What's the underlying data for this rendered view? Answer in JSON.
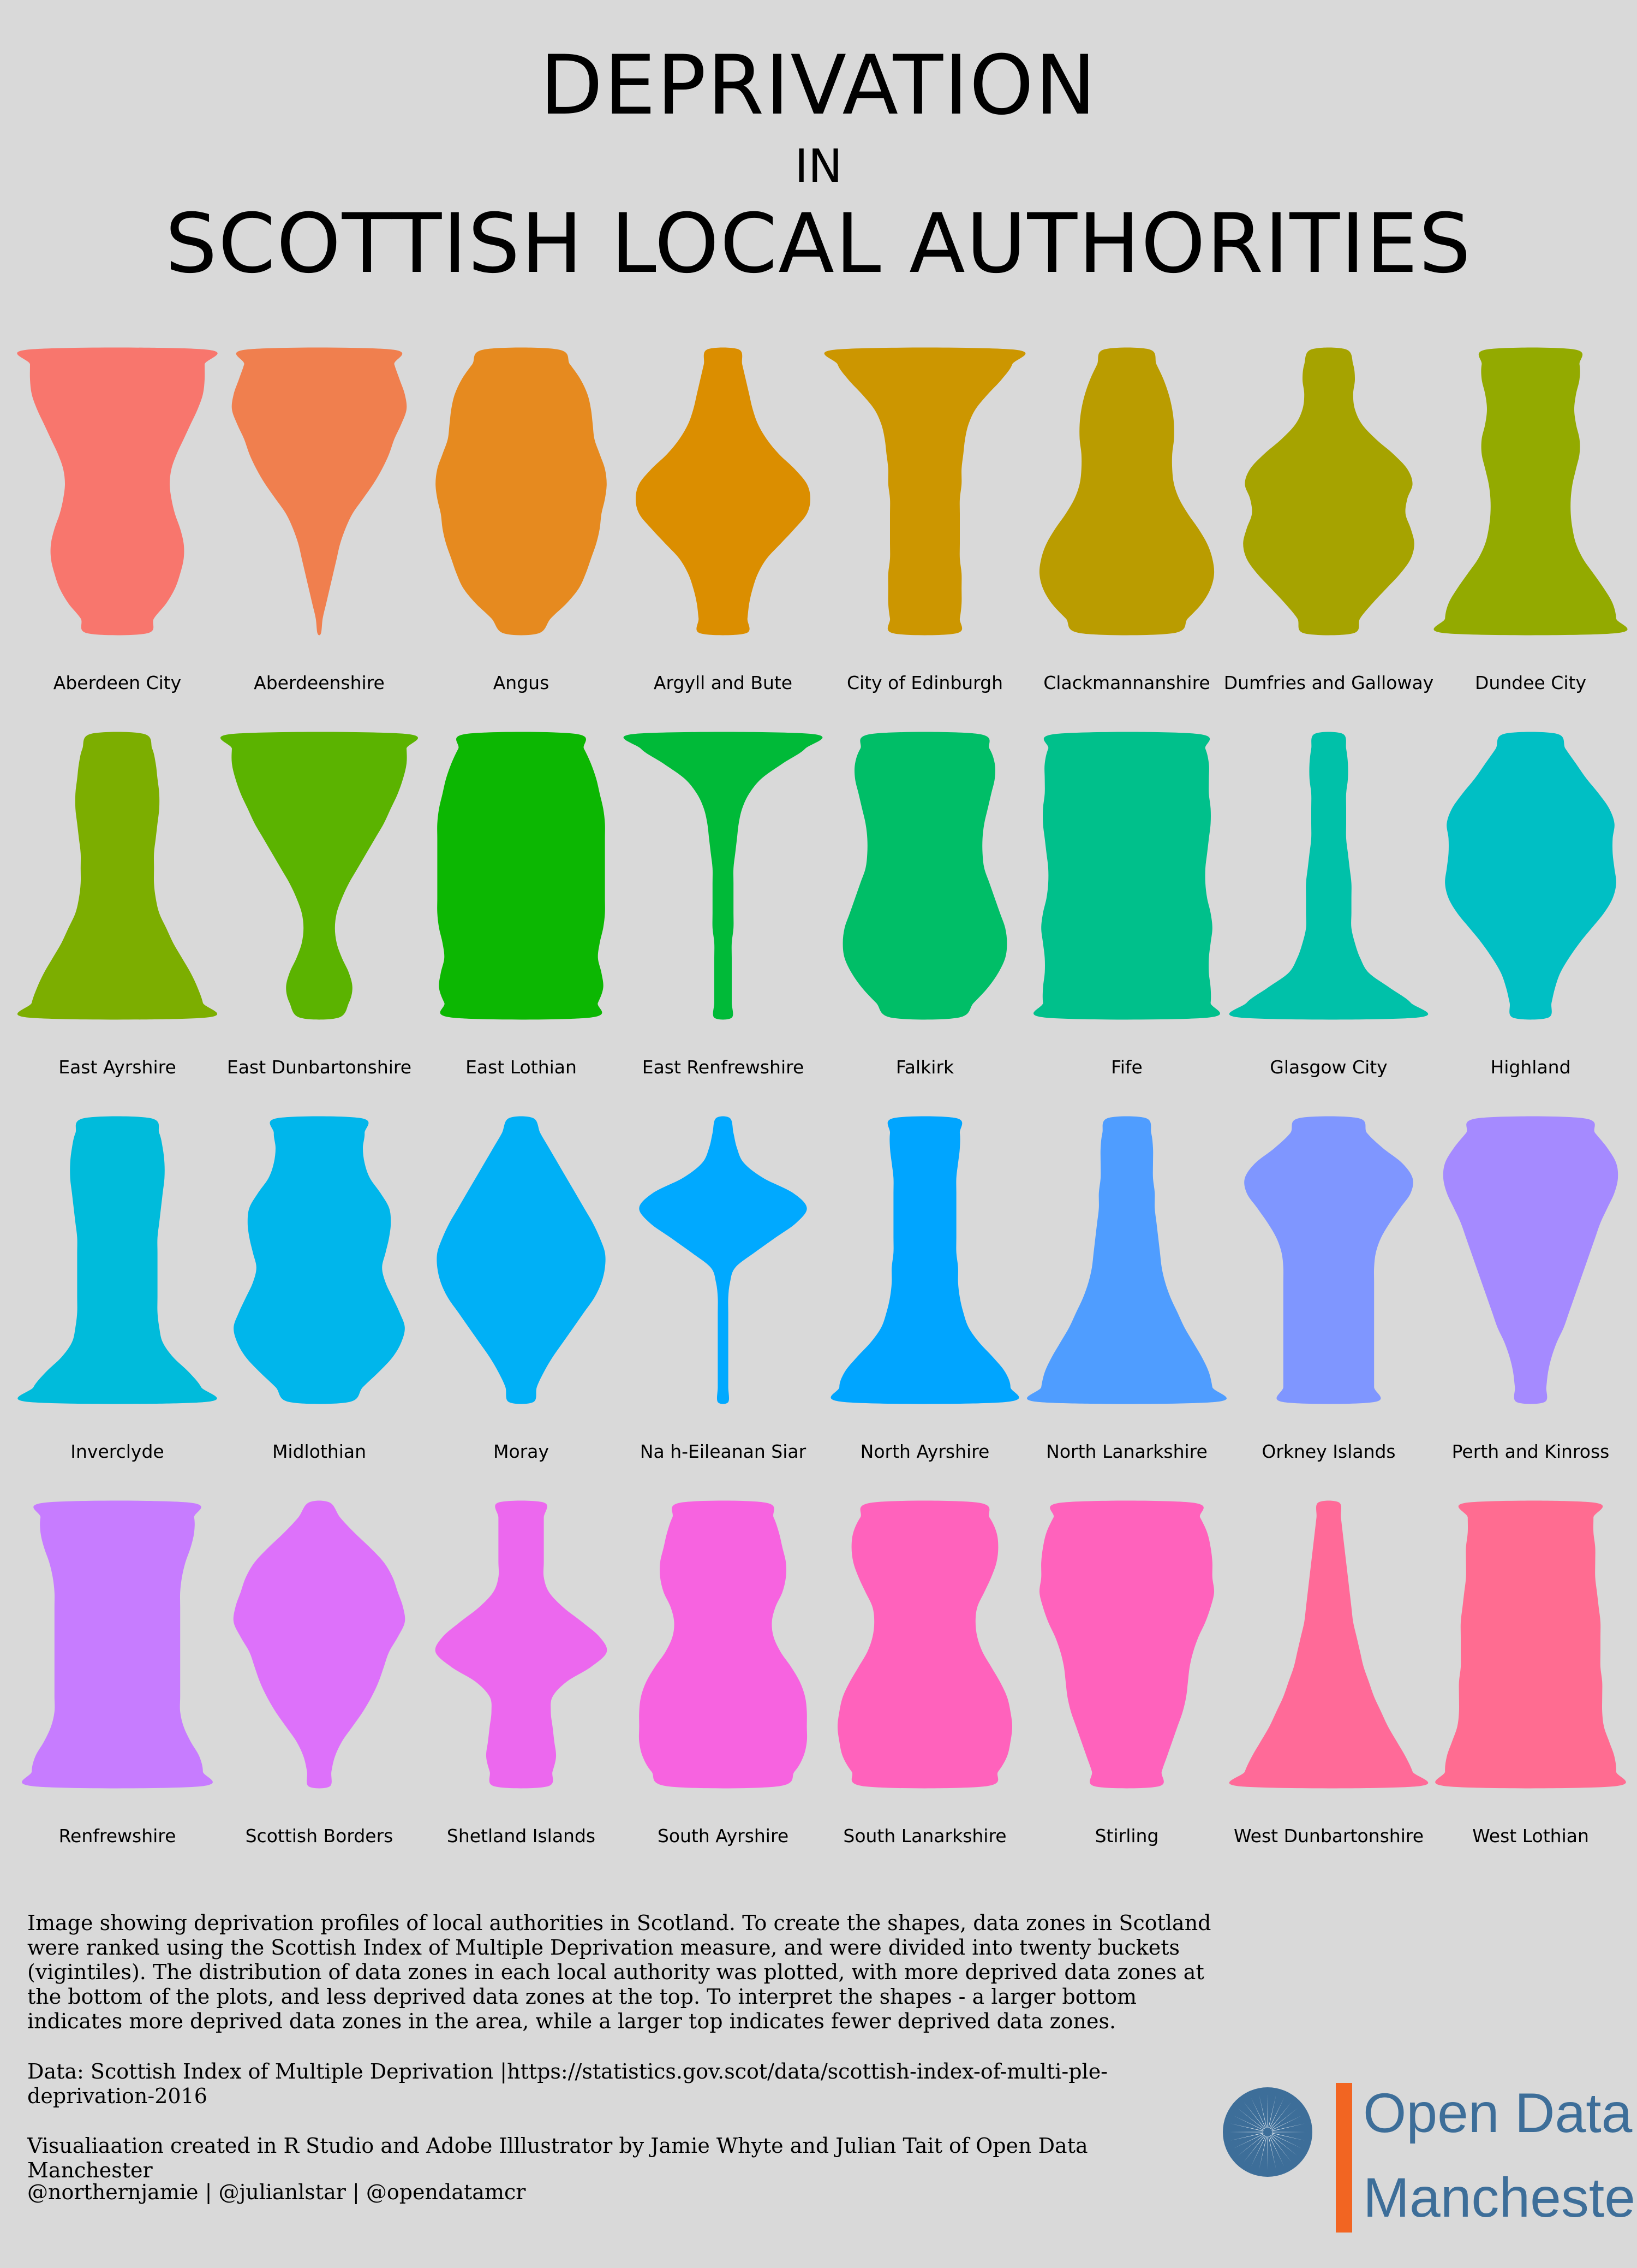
{
  "title": {
    "line1": "DEPRIVATION",
    "line2": "IN",
    "line3": "SCOTTISH LOCAL AUTHORITIES"
  },
  "chart_data": {
    "type": "violin",
    "note": "Relative width of each shape at 20 vigintile levels, listed from the bottom (most deprived) to the top (least deprived); width 1 is the widest shape in the figure.",
    "panels": [
      {
        "name": "Aberdeen City",
        "color": "#f8766d",
        "width": [
          0.34,
          0.42,
          0.56,
          0.66,
          0.72,
          0.76,
          0.76,
          0.72,
          0.66,
          0.62,
          0.6,
          0.62,
          0.68,
          0.76,
          0.84,
          0.92,
          0.98,
          1.0,
          1.0,
          1.0
        ]
      },
      {
        "name": "Aberdeenshire",
        "color": "#f07f4e",
        "width": [
          0.02,
          0.04,
          0.08,
          0.12,
          0.16,
          0.2,
          0.24,
          0.3,
          0.38,
          0.5,
          0.62,
          0.72,
          0.8,
          0.86,
          0.94,
          1.0,
          0.98,
          0.92,
          0.86,
          0.82
        ]
      },
      {
        "name": "Angus",
        "color": "#e68a1f",
        "width": [
          0.2,
          0.34,
          0.52,
          0.66,
          0.74,
          0.8,
          0.86,
          0.9,
          0.92,
          0.96,
          0.98,
          0.96,
          0.9,
          0.84,
          0.82,
          0.8,
          0.76,
          0.68,
          0.56,
          0.42
        ]
      },
      {
        "name": "Argyll and Bute",
        "color": "#db8e00",
        "width": [
          0.26,
          0.28,
          0.3,
          0.34,
          0.4,
          0.5,
          0.66,
          0.82,
          0.96,
          1.0,
          0.96,
          0.82,
          0.64,
          0.5,
          0.4,
          0.34,
          0.3,
          0.26,
          0.22,
          0.18
        ]
      },
      {
        "name": "City of Edinburgh",
        "color": "#cc9600",
        "width": [
          0.36,
          0.4,
          0.42,
          0.42,
          0.42,
          0.4,
          0.4,
          0.4,
          0.4,
          0.4,
          0.42,
          0.42,
          0.44,
          0.46,
          0.5,
          0.58,
          0.72,
          0.88,
          1.0,
          1.0
        ]
      },
      {
        "name": "Clackmannanshire",
        "color": "#ba9c00",
        "width": [
          0.52,
          0.7,
          0.86,
          0.96,
          1.0,
          0.98,
          0.92,
          0.82,
          0.7,
          0.6,
          0.54,
          0.52,
          0.52,
          0.54,
          0.54,
          0.52,
          0.48,
          0.42,
          0.34,
          0.26
        ]
      },
      {
        "name": "Dumfries and Galloway",
        "color": "#a6a300",
        "width": [
          0.28,
          0.36,
          0.5,
          0.66,
          0.82,
          0.94,
          0.98,
          0.94,
          0.88,
          0.9,
          0.96,
          0.9,
          0.74,
          0.54,
          0.38,
          0.3,
          0.28,
          0.3,
          0.28,
          0.2
        ]
      },
      {
        "name": "Dundee City",
        "color": "#93aa00",
        "width": [
          0.96,
          0.98,
          0.94,
          0.84,
          0.72,
          0.6,
          0.52,
          0.48,
          0.46,
          0.46,
          0.48,
          0.52,
          0.56,
          0.56,
          0.52,
          0.5,
          0.52,
          0.56,
          0.56,
          0.5
        ]
      },
      {
        "name": "East Ayrshire",
        "color": "#7cae00",
        "width": [
          1.0,
          0.98,
          0.92,
          0.84,
          0.74,
          0.64,
          0.56,
          0.48,
          0.44,
          0.42,
          0.42,
          0.42,
          0.44,
          0.46,
          0.48,
          0.48,
          0.46,
          0.44,
          0.4,
          0.3
        ]
      },
      {
        "name": "East Dunbartonshire",
        "color": "#5bb300",
        "width": [
          0.22,
          0.34,
          0.38,
          0.34,
          0.26,
          0.2,
          0.18,
          0.2,
          0.26,
          0.34,
          0.44,
          0.54,
          0.64,
          0.74,
          0.82,
          0.9,
          0.96,
          1.0,
          1.0,
          0.98
        ]
      },
      {
        "name": "East Lothian",
        "color": "#0cb702",
        "width": [
          0.78,
          0.88,
          0.94,
          0.92,
          0.88,
          0.9,
          0.94,
          0.96,
          0.96,
          0.96,
          0.96,
          0.96,
          0.96,
          0.96,
          0.94,
          0.9,
          0.86,
          0.8,
          0.72,
          0.62
        ]
      },
      {
        "name": "East Renfrewshire",
        "color": "#00ba38",
        "width": [
          0.1,
          0.1,
          0.1,
          0.1,
          0.1,
          0.1,
          0.12,
          0.12,
          0.12,
          0.12,
          0.12,
          0.14,
          0.16,
          0.18,
          0.22,
          0.3,
          0.44,
          0.68,
          0.94,
          1.0
        ]
      },
      {
        "name": "Falkirk",
        "color": "#00be67",
        "width": [
          0.38,
          0.56,
          0.72,
          0.84,
          0.92,
          0.94,
          0.92,
          0.86,
          0.8,
          0.74,
          0.68,
          0.66,
          0.66,
          0.68,
          0.72,
          0.76,
          0.8,
          0.8,
          0.74,
          0.6
        ]
      },
      {
        "name": "Fife",
        "color": "#00c08b",
        "width": [
          0.92,
          0.96,
          0.96,
          0.94,
          0.94,
          0.96,
          0.98,
          0.96,
          0.92,
          0.9,
          0.9,
          0.92,
          0.94,
          0.96,
          0.96,
          0.94,
          0.94,
          0.94,
          0.9,
          0.8
        ]
      },
      {
        "name": "Glasgow City",
        "color": "#00c1a9",
        "width": [
          1.0,
          0.94,
          0.7,
          0.46,
          0.36,
          0.3,
          0.26,
          0.26,
          0.26,
          0.26,
          0.24,
          0.22,
          0.2,
          0.2,
          0.2,
          0.2,
          0.22,
          0.22,
          0.2,
          0.16
        ]
      },
      {
        "name": "Highland",
        "color": "#00bfc4",
        "width": [
          0.2,
          0.24,
          0.28,
          0.34,
          0.44,
          0.56,
          0.7,
          0.84,
          0.94,
          0.98,
          0.96,
          0.94,
          0.94,
          0.96,
          0.9,
          0.78,
          0.64,
          0.52,
          0.4,
          0.3
        ]
      },
      {
        "name": "Inverclyde",
        "color": "#00bbdb",
        "width": [
          1.0,
          0.96,
          0.82,
          0.64,
          0.52,
          0.48,
          0.46,
          0.46,
          0.46,
          0.46,
          0.46,
          0.46,
          0.48,
          0.5,
          0.52,
          0.54,
          0.54,
          0.52,
          0.48,
          0.38
        ]
      },
      {
        "name": "Midlothian",
        "color": "#00b6eb",
        "width": [
          0.34,
          0.5,
          0.68,
          0.84,
          0.94,
          0.98,
          0.92,
          0.84,
          0.76,
          0.72,
          0.76,
          0.8,
          0.82,
          0.8,
          0.7,
          0.58,
          0.52,
          0.5,
          0.52,
          0.48
        ]
      },
      {
        "name": "Moray",
        "color": "#00b0f6",
        "width": [
          0.14,
          0.18,
          0.26,
          0.36,
          0.48,
          0.6,
          0.72,
          0.84,
          0.92,
          0.96,
          0.96,
          0.9,
          0.82,
          0.72,
          0.62,
          0.52,
          0.42,
          0.32,
          0.22,
          0.14
        ]
      },
      {
        "name": "Na h-Eileanan Siar",
        "color": "#00a9ff",
        "width": [
          0.06,
          0.06,
          0.06,
          0.06,
          0.06,
          0.06,
          0.06,
          0.06,
          0.08,
          0.14,
          0.36,
          0.6,
          0.84,
          0.96,
          0.8,
          0.46,
          0.24,
          0.16,
          0.12,
          0.08
        ]
      },
      {
        "name": "North Ayrshire",
        "color": "#00a5ff",
        "width": [
          0.92,
          0.98,
          0.92,
          0.78,
          0.62,
          0.5,
          0.44,
          0.4,
          0.38,
          0.38,
          0.36,
          0.36,
          0.36,
          0.36,
          0.36,
          0.36,
          0.38,
          0.4,
          0.4,
          0.36
        ]
      },
      {
        "name": "North Lanarkshire",
        "color": "#4f9dff",
        "width": [
          1.0,
          0.98,
          0.94,
          0.86,
          0.76,
          0.66,
          0.58,
          0.5,
          0.44,
          0.4,
          0.38,
          0.36,
          0.34,
          0.32,
          0.32,
          0.3,
          0.3,
          0.3,
          0.28,
          0.22
        ]
      },
      {
        "name": "Orkney Islands",
        "color": "#7f96ff",
        "width": [
          0.52,
          0.52,
          0.52,
          0.52,
          0.52,
          0.52,
          0.52,
          0.52,
          0.52,
          0.52,
          0.54,
          0.6,
          0.7,
          0.82,
          0.94,
          0.96,
          0.84,
          0.62,
          0.44,
          0.34
        ]
      },
      {
        "name": "Perth and Kinross",
        "color": "#a58aff",
        "width": [
          0.16,
          0.18,
          0.2,
          0.24,
          0.3,
          0.38,
          0.44,
          0.5,
          0.56,
          0.62,
          0.68,
          0.74,
          0.8,
          0.88,
          0.96,
          1.0,
          0.98,
          0.88,
          0.74,
          0.6
        ]
      },
      {
        "name": "Renfrewshire",
        "color": "#c77cff",
        "width": [
          0.94,
          0.98,
          0.94,
          0.84,
          0.76,
          0.72,
          0.72,
          0.72,
          0.72,
          0.72,
          0.72,
          0.72,
          0.72,
          0.72,
          0.74,
          0.78,
          0.84,
          0.88,
          0.88,
          0.82
        ]
      },
      {
        "name": "Scottish Borders",
        "color": "#dd71fa",
        "width": [
          0.12,
          0.14,
          0.18,
          0.26,
          0.38,
          0.5,
          0.6,
          0.68,
          0.74,
          0.8,
          0.9,
          0.98,
          0.96,
          0.9,
          0.84,
          0.74,
          0.58,
          0.4,
          0.24,
          0.12
        ]
      },
      {
        "name": "Shetland Islands",
        "color": "#ec68ee",
        "width": [
          0.3,
          0.36,
          0.4,
          0.38,
          0.36,
          0.34,
          0.36,
          0.52,
          0.8,
          0.98,
          0.9,
          0.7,
          0.48,
          0.32,
          0.26,
          0.26,
          0.26,
          0.26,
          0.26,
          0.26
        ]
      },
      {
        "name": "South Ayrshire",
        "color": "#f763e0",
        "width": [
          0.62,
          0.82,
          0.92,
          0.96,
          0.96,
          0.96,
          0.94,
          0.88,
          0.78,
          0.66,
          0.58,
          0.56,
          0.6,
          0.68,
          0.72,
          0.72,
          0.68,
          0.64,
          0.58,
          0.48
        ]
      },
      {
        "name": "South Lanarkshire",
        "color": "#ff62bc",
        "width": [
          0.68,
          0.84,
          0.94,
          0.98,
          1.0,
          0.98,
          0.94,
          0.86,
          0.76,
          0.66,
          0.6,
          0.58,
          0.6,
          0.68,
          0.76,
          0.82,
          0.84,
          0.82,
          0.74,
          0.6
        ]
      },
      {
        "name": "Stirling",
        "color": "#ff62bc",
        "width": [
          0.36,
          0.4,
          0.46,
          0.52,
          0.58,
          0.64,
          0.68,
          0.7,
          0.72,
          0.76,
          0.82,
          0.9,
          0.96,
          1.0,
          0.98,
          0.98,
          0.96,
          0.92,
          0.84,
          0.74
        ]
      },
      {
        "name": "West Dunbartonshire",
        "color": "#ff6a98",
        "width": [
          1.0,
          0.96,
          0.88,
          0.78,
          0.68,
          0.6,
          0.52,
          0.46,
          0.4,
          0.36,
          0.32,
          0.28,
          0.26,
          0.24,
          0.22,
          0.2,
          0.18,
          0.16,
          0.14,
          0.12
        ]
      },
      {
        "name": "West Lothian",
        "color": "#ff6c91",
        "width": [
          0.94,
          0.98,
          0.96,
          0.9,
          0.84,
          0.82,
          0.82,
          0.82,
          0.8,
          0.8,
          0.8,
          0.8,
          0.78,
          0.76,
          0.74,
          0.74,
          0.74,
          0.72,
          0.72,
          0.72
        ]
      }
    ]
  },
  "description": {
    "paragraph": "Image showing deprivation profiles of local authorities in Scotland. To create the shapes, data zones in Scotland were ranked using the Scottish Index of Multiple Deprivation measure, and were divided into twenty buckets (vigintiles). The distribution of data zones in each local authority was plotted, with more deprived data zones at the bottom of the plots, and less deprived data zones at the top. To interpret the shapes - a larger bottom indicates more deprived data zones in the area, while a larger top indicates fewer deprived data zones.",
    "data_source": "Data: Scottish Index of Multiple Deprivation |https://statistics.gov.scot/data/scottish-index-of-multi-ple-deprivation-2016",
    "credit": "Visualiaation created in R Studio and Adobe Illlustrator by Jamie Whyte and Julian Tait of Open Data Manchester",
    "handles": "@northernjamie | @julianlstar | @opendatamcr"
  },
  "logo": {
    "line1": "Open Data",
    "line2": "Manchester",
    "color": "#3d6e99",
    "bar_color": "#f26522"
  }
}
